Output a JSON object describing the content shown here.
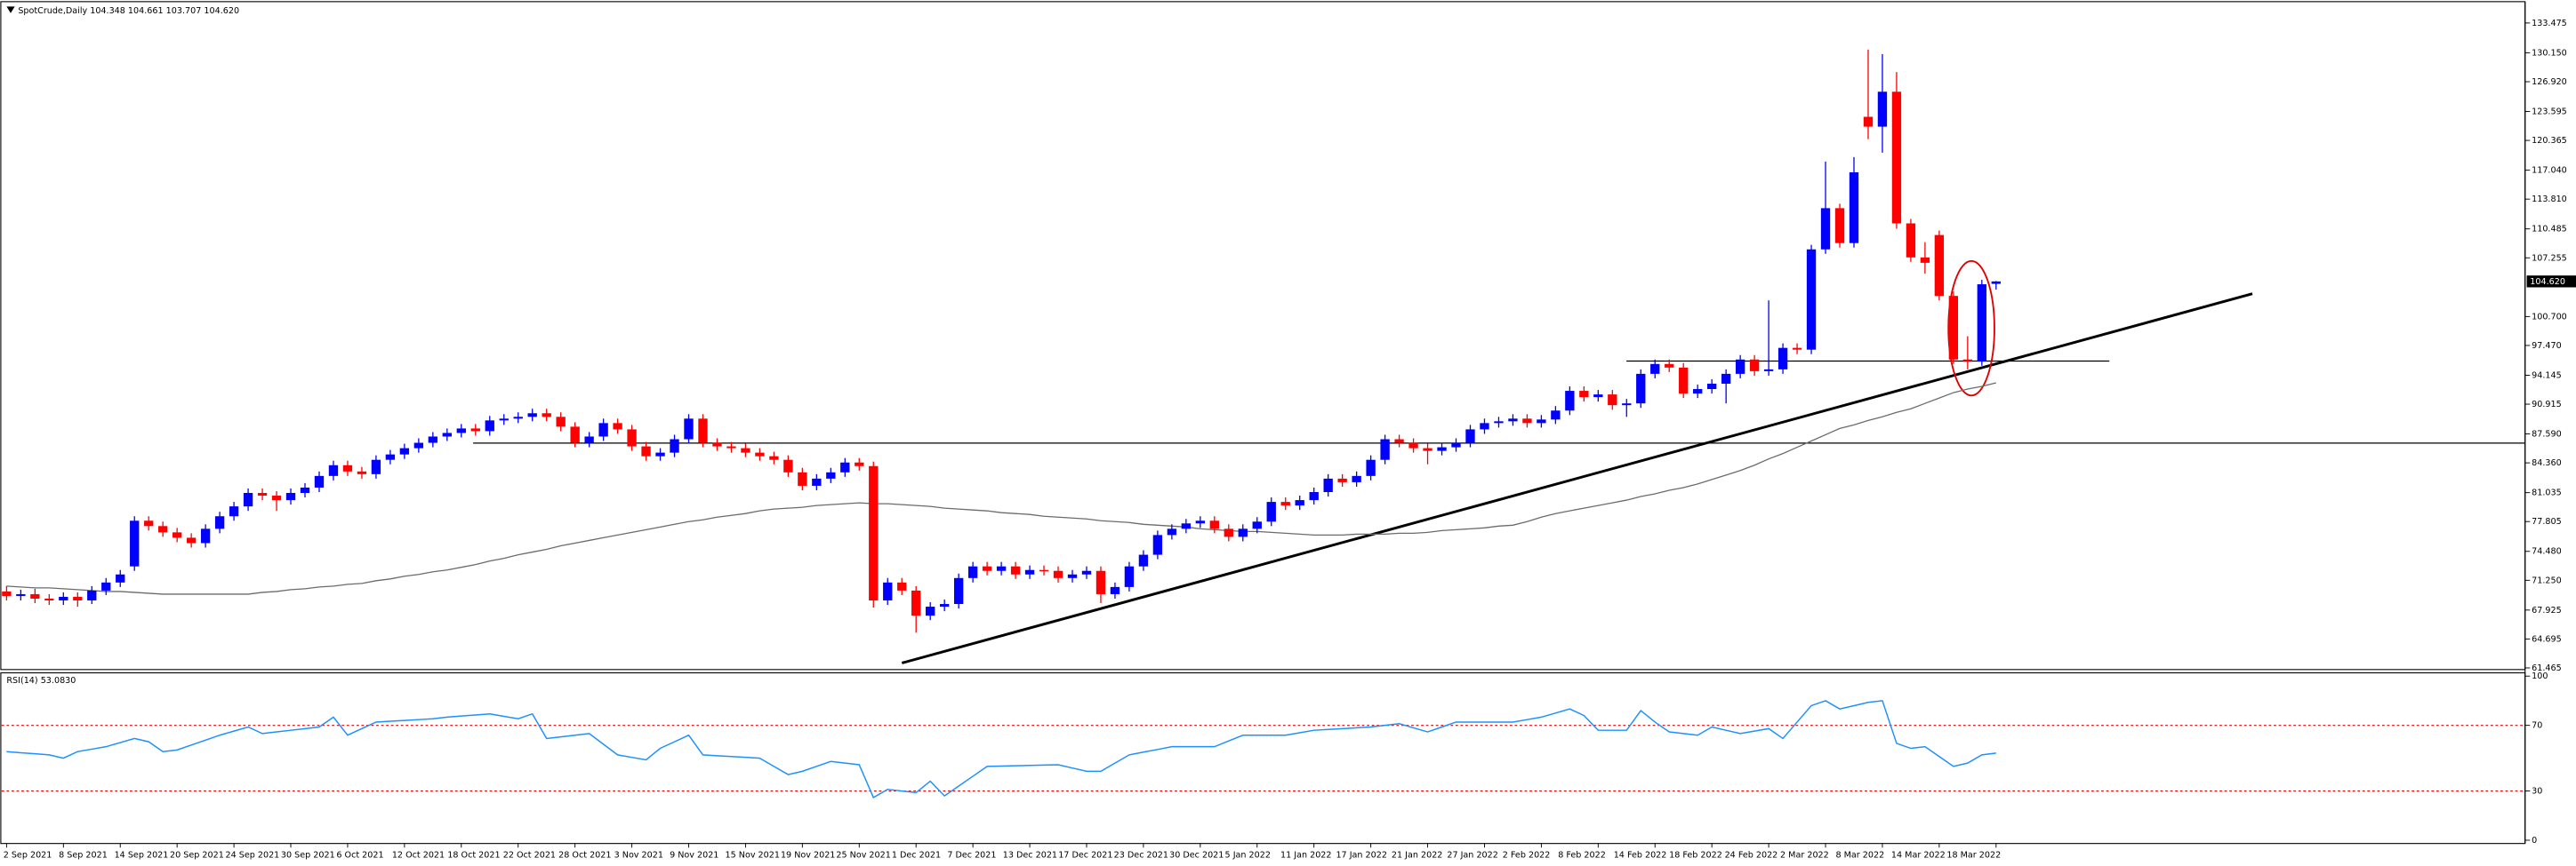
{
  "chart_data": {
    "type": "candlestick",
    "title": "SpotCrude,Daily  104.348 104.661 103.707 104.620",
    "categories": [
      "2 Sep 2021",
      null,
      null,
      null,
      "8 Sep 2021",
      null,
      null,
      null,
      "14 Sep 2021",
      null,
      null,
      null,
      "20 Sep 2021",
      null,
      null,
      null,
      "24 Sep 2021",
      null,
      null,
      null,
      "30 Sep 2021",
      null,
      null,
      null,
      "6 Oct 2021",
      null,
      null,
      null,
      "12 Oct 2021",
      null,
      null,
      null,
      "18 Oct 2021",
      null,
      null,
      null,
      "22 Oct 2021",
      null,
      null,
      null,
      "28 Oct 2021",
      null,
      null,
      null,
      "3 Nov 2021",
      null,
      null,
      null,
      "9 Nov 2021",
      null,
      null,
      null,
      "15 Nov 2021",
      null,
      null,
      null,
      "19 Nov 2021",
      null,
      null,
      null,
      "25 Nov 2021",
      null,
      null,
      null,
      "1 Dec 2021",
      null,
      null,
      null,
      "7 Dec 2021",
      null,
      null,
      null,
      "13 Dec 2021",
      null,
      null,
      null,
      "17 Dec 2021",
      null,
      null,
      null,
      "23 Dec 2021",
      null,
      null,
      null,
      "30 Dec 2021",
      null,
      null,
      null,
      "5 Jan 2022",
      null,
      null,
      null,
      "11 Jan 2022",
      null,
      null,
      null,
      "17 Jan 2022",
      null,
      null,
      null,
      "21 Jan 2022",
      null,
      null,
      null,
      "27 Jan 2022",
      null,
      null,
      null,
      "2 Feb 2022",
      null,
      null,
      null,
      "8 Feb 2022",
      null,
      null,
      null,
      "14 Feb 2022",
      null,
      null,
      null,
      "18 Feb 2022",
      null,
      null,
      null,
      "24 Feb 2022",
      null,
      null,
      null,
      "2 Mar 2022",
      null,
      null,
      null,
      "8 Mar 2022",
      null,
      null,
      null,
      "14 Mar 2022",
      null,
      null,
      null,
      "18 Mar 2022"
    ],
    "candles": [
      [
        70.0,
        70.6,
        69.0,
        69.5
      ],
      [
        69.5,
        70.2,
        69.0,
        69.7
      ],
      [
        69.7,
        70.3,
        68.7,
        69.2
      ],
      [
        69.2,
        69.7,
        68.5,
        69.0
      ],
      [
        69.0,
        69.9,
        68.5,
        69.4
      ],
      [
        69.4,
        69.9,
        68.3,
        69.0
      ],
      [
        69.0,
        70.6,
        68.6,
        70.1
      ],
      [
        70.1,
        71.5,
        69.6,
        71.0
      ],
      [
        71.0,
        72.4,
        70.5,
        71.9
      ],
      [
        72.8,
        78.4,
        72.3,
        77.9
      ],
      [
        77.9,
        78.4,
        76.8,
        77.3
      ],
      [
        77.3,
        77.8,
        76.1,
        76.6
      ],
      [
        76.6,
        77.1,
        75.5,
        76.0
      ],
      [
        76.0,
        76.5,
        74.9,
        75.4
      ],
      [
        75.4,
        77.5,
        74.9,
        77.0
      ],
      [
        77.0,
        78.9,
        76.5,
        78.4
      ],
      [
        78.4,
        80.0,
        77.9,
        79.5
      ],
      [
        79.5,
        81.5,
        79.0,
        81.0
      ],
      [
        81.0,
        81.5,
        80.2,
        80.7
      ],
      [
        80.7,
        81.2,
        79.0,
        80.2
      ],
      [
        80.2,
        81.5,
        79.7,
        81.0
      ],
      [
        81.0,
        82.1,
        80.5,
        81.6
      ],
      [
        81.6,
        83.4,
        81.1,
        82.9
      ],
      [
        82.9,
        84.6,
        82.4,
        84.1
      ],
      [
        84.1,
        84.6,
        82.9,
        83.4
      ],
      [
        83.4,
        83.9,
        82.6,
        83.1
      ],
      [
        83.1,
        85.2,
        82.6,
        84.7
      ],
      [
        84.7,
        85.8,
        84.2,
        85.3
      ],
      [
        85.3,
        86.5,
        84.8,
        86.0
      ],
      [
        86.0,
        87.1,
        85.5,
        86.6
      ],
      [
        86.6,
        87.8,
        86.1,
        87.3
      ],
      [
        87.3,
        88.2,
        86.8,
        87.7
      ],
      [
        87.7,
        88.7,
        87.2,
        88.2
      ],
      [
        88.2,
        88.7,
        87.4,
        87.9
      ],
      [
        87.9,
        89.6,
        87.4,
        89.1
      ],
      [
        89.1,
        89.8,
        88.6,
        89.3
      ],
      [
        89.3,
        90.0,
        88.8,
        89.5
      ],
      [
        89.5,
        90.4,
        89.0,
        89.9
      ],
      [
        89.9,
        90.4,
        89.0,
        89.5
      ],
      [
        89.5,
        90.0,
        87.9,
        88.4
      ],
      [
        88.4,
        88.9,
        86.1,
        86.6
      ],
      [
        86.6,
        87.8,
        86.1,
        87.3
      ],
      [
        87.3,
        89.3,
        86.8,
        88.8
      ],
      [
        88.8,
        89.3,
        87.6,
        88.1
      ],
      [
        88.1,
        88.6,
        85.7,
        86.2
      ],
      [
        86.2,
        86.7,
        84.6,
        85.1
      ],
      [
        85.1,
        86.0,
        84.6,
        85.5
      ],
      [
        85.5,
        87.5,
        85.0,
        87.0
      ],
      [
        87.0,
        89.8,
        86.5,
        89.3
      ],
      [
        89.3,
        89.8,
        86.1,
        86.6
      ],
      [
        86.6,
        87.1,
        85.7,
        86.2
      ],
      [
        86.2,
        86.7,
        85.5,
        86.0
      ],
      [
        86.0,
        86.5,
        85.0,
        85.5
      ],
      [
        85.5,
        86.0,
        84.6,
        85.1
      ],
      [
        85.1,
        85.6,
        84.2,
        84.7
      ],
      [
        84.7,
        85.2,
        82.8,
        83.3
      ],
      [
        83.3,
        83.8,
        81.3,
        81.8
      ],
      [
        81.8,
        83.1,
        81.3,
        82.6
      ],
      [
        82.6,
        83.8,
        82.1,
        83.3
      ],
      [
        83.3,
        84.9,
        82.8,
        84.4
      ],
      [
        84.4,
        84.9,
        83.5,
        84.0
      ],
      [
        84.0,
        84.5,
        68.2,
        69.0
      ],
      [
        69.0,
        71.5,
        68.5,
        71.0
      ],
      [
        71.0,
        71.5,
        69.6,
        70.1
      ],
      [
        70.1,
        70.6,
        65.4,
        67.3
      ],
      [
        67.3,
        68.8,
        66.8,
        68.3
      ],
      [
        68.3,
        69.1,
        67.8,
        68.6
      ],
      [
        68.6,
        72.0,
        68.1,
        71.5
      ],
      [
        71.5,
        73.3,
        71.0,
        72.8
      ],
      [
        72.8,
        73.3,
        71.8,
        72.3
      ],
      [
        72.3,
        73.3,
        71.8,
        72.8
      ],
      [
        72.8,
        73.3,
        71.4,
        71.9
      ],
      [
        71.9,
        72.9,
        71.4,
        72.4
      ],
      [
        72.4,
        72.9,
        71.8,
        72.3
      ],
      [
        72.3,
        72.8,
        71.0,
        71.5
      ],
      [
        71.5,
        72.4,
        71.0,
        71.9
      ],
      [
        71.9,
        72.8,
        71.4,
        72.3
      ],
      [
        72.3,
        72.8,
        68.7,
        69.7
      ],
      [
        69.7,
        71.0,
        69.2,
        70.5
      ],
      [
        70.5,
        73.3,
        70.0,
        72.8
      ],
      [
        72.8,
        74.6,
        72.3,
        74.1
      ],
      [
        74.1,
        76.8,
        73.6,
        76.3
      ],
      [
        76.3,
        77.5,
        75.8,
        77.0
      ],
      [
        77.0,
        78.1,
        76.5,
        77.6
      ],
      [
        77.6,
        78.4,
        77.1,
        77.9
      ],
      [
        77.9,
        78.4,
        76.5,
        77.0
      ],
      [
        77.0,
        77.5,
        75.6,
        76.1
      ],
      [
        76.1,
        77.5,
        75.6,
        77.0
      ],
      [
        77.0,
        78.3,
        76.5,
        77.8
      ],
      [
        77.8,
        80.5,
        77.3,
        80.0
      ],
      [
        80.0,
        80.5,
        79.1,
        79.6
      ],
      [
        79.6,
        80.7,
        79.1,
        80.2
      ],
      [
        80.2,
        81.6,
        79.7,
        81.1
      ],
      [
        81.1,
        83.1,
        80.6,
        82.6
      ],
      [
        82.6,
        83.1,
        81.7,
        82.2
      ],
      [
        82.2,
        83.4,
        81.7,
        82.9
      ],
      [
        82.9,
        85.2,
        82.4,
        84.7
      ],
      [
        84.7,
        87.5,
        84.2,
        87.0
      ],
      [
        87.0,
        87.5,
        86.1,
        86.6
      ],
      [
        86.6,
        87.1,
        85.5,
        86.0
      ],
      [
        86.0,
        86.5,
        84.2,
        85.7
      ],
      [
        85.7,
        86.6,
        85.2,
        86.1
      ],
      [
        86.1,
        87.1,
        85.6,
        86.6
      ],
      [
        86.6,
        88.6,
        86.1,
        88.1
      ],
      [
        88.1,
        89.3,
        87.6,
        88.8
      ],
      [
        88.8,
        89.5,
        88.3,
        89.0
      ],
      [
        89.0,
        89.8,
        88.5,
        89.3
      ],
      [
        89.3,
        89.8,
        88.3,
        88.8
      ],
      [
        88.8,
        89.7,
        88.3,
        89.2
      ],
      [
        89.2,
        90.7,
        88.7,
        90.2
      ],
      [
        90.2,
        92.9,
        89.7,
        92.4
      ],
      [
        92.4,
        92.9,
        91.2,
        91.7
      ],
      [
        91.7,
        92.5,
        91.2,
        92.0
      ],
      [
        92.0,
        92.5,
        90.3,
        90.8
      ],
      [
        90.8,
        91.5,
        89.5,
        91.0
      ],
      [
        91.0,
        94.8,
        90.5,
        94.3
      ],
      [
        94.3,
        95.9,
        93.8,
        95.4
      ],
      [
        95.4,
        95.9,
        94.5,
        95.0
      ],
      [
        95.0,
        95.5,
        91.6,
        92.1
      ],
      [
        92.1,
        93.1,
        91.6,
        92.6
      ],
      [
        92.6,
        93.7,
        92.1,
        93.2
      ],
      [
        93.2,
        94.8,
        91.0,
        94.3
      ],
      [
        94.3,
        96.4,
        93.8,
        95.9
      ],
      [
        95.9,
        96.4,
        94.1,
        94.6
      ],
      [
        94.6,
        102.5,
        94.1,
        94.8
      ],
      [
        94.8,
        97.7,
        94.3,
        97.2
      ],
      [
        97.2,
        97.7,
        96.5,
        97.0
      ],
      [
        97.0,
        108.7,
        96.5,
        108.2
      ],
      [
        108.2,
        118.0,
        107.7,
        112.8
      ],
      [
        112.8,
        113.3,
        108.4,
        108.9
      ],
      [
        108.9,
        118.5,
        108.4,
        116.8
      ],
      [
        123.0,
        130.5,
        120.5,
        121.9
      ],
      [
        121.9,
        130.0,
        119.0,
        125.8
      ],
      [
        125.8,
        128.0,
        110.5,
        111.1
      ],
      [
        111.1,
        111.6,
        106.8,
        107.3
      ],
      [
        107.3,
        109.0,
        105.5,
        106.7
      ],
      [
        109.8,
        110.3,
        102.5,
        103.0
      ],
      [
        103.0,
        103.5,
        95.4,
        95.9
      ],
      [
        95.9,
        98.5,
        94.8,
        95.7
      ],
      [
        95.7,
        104.8,
        95.2,
        104.3
      ],
      [
        104.348,
        104.661,
        103.707,
        104.62
      ]
    ],
    "up_color": "#0000ff",
    "down_color": "#ff0000",
    "ma": {
      "color": "#6b6b6b",
      "values": [
        70.6,
        70.5,
        70.4,
        70.4,
        70.3,
        70.2,
        70.1,
        70.0,
        70.0,
        69.9,
        69.8,
        69.7,
        69.7,
        69.7,
        69.7,
        69.7,
        69.7,
        69.7,
        69.9,
        70.0,
        70.2,
        70.3,
        70.5,
        70.6,
        70.8,
        70.9,
        71.2,
        71.4,
        71.7,
        71.9,
        72.2,
        72.4,
        72.7,
        73.0,
        73.4,
        73.7,
        74.1,
        74.4,
        74.7,
        75.1,
        75.4,
        75.7,
        76.0,
        76.3,
        76.6,
        76.9,
        77.2,
        77.5,
        77.8,
        78.0,
        78.3,
        78.5,
        78.7,
        79.0,
        79.2,
        79.3,
        79.4,
        79.6,
        79.7,
        79.8,
        79.9,
        79.8,
        79.8,
        79.7,
        79.6,
        79.5,
        79.3,
        79.2,
        79.1,
        79.0,
        78.8,
        78.7,
        78.6,
        78.4,
        78.3,
        78.2,
        78.1,
        77.9,
        77.8,
        77.7,
        77.5,
        77.4,
        77.3,
        77.2,
        77.0,
        76.9,
        76.8,
        76.7,
        76.7,
        76.6,
        76.5,
        76.4,
        76.3,
        76.3,
        76.3,
        76.4,
        76.4,
        76.4,
        76.5,
        76.5,
        76.6,
        76.8,
        76.9,
        77.0,
        77.1,
        77.3,
        77.4,
        77.8,
        78.3,
        78.7,
        79.0,
        79.3,
        79.6,
        79.9,
        80.2,
        80.6,
        80.9,
        81.3,
        81.6,
        82.0,
        82.5,
        83.0,
        83.5,
        84.1,
        84.8,
        85.4,
        86.1,
        86.8,
        87.5,
        88.2,
        88.6,
        89.1,
        89.5,
        90.0,
        90.4,
        91.0,
        91.6,
        92.2,
        92.6,
        92.9,
        93.3
      ]
    },
    "ylim": [
      61.465,
      133.475
    ],
    "yticks": [
      133.475,
      {
        "value": 130.15,
        "label": "130.150"
      },
      {
        "value": 126.92,
        "label": "126.920"
      },
      123.595,
      120.365,
      {
        "value": 117.04,
        "label": "117.040"
      },
      {
        "value": 113.81,
        "label": "113.810"
      },
      110.485,
      107.255,
      {
        "value": 100.7,
        "label": "100.700"
      },
      {
        "value": 97.47,
        "label": "97.470"
      },
      94.145,
      90.915,
      {
        "value": 87.59,
        "label": "87.590"
      },
      {
        "value": 84.36,
        "label": "84.360"
      },
      81.035,
      77.805,
      {
        "value": 74.48,
        "label": "74.480"
      },
      {
        "value": 71.25,
        "label": "71.250"
      },
      67.925,
      64.695,
      61.465
    ],
    "current_price": {
      "value": 104.62,
      "label": "104.620"
    },
    "rsi": {
      "title": "RSI(14) 53.0830",
      "color": "#1e90ff",
      "level_color": "#e00000",
      "ylim": [
        0,
        100
      ],
      "yticks": [
        100,
        70,
        30,
        0
      ],
      "values": [
        54,
        53.3,
        52.7,
        52,
        50,
        54,
        55.5,
        57,
        59.5,
        62,
        60,
        54,
        55,
        58,
        61,
        64,
        66.5,
        69,
        65,
        66,
        67,
        68,
        69,
        75,
        64,
        68,
        72,
        72.5,
        73,
        73.5,
        74,
        75,
        75.7,
        76.3,
        77,
        75.5,
        74,
        77,
        62,
        63,
        64,
        65,
        58.5,
        52,
        50.5,
        49,
        56,
        60,
        64,
        52,
        51.5,
        51,
        50.5,
        50,
        45,
        40,
        42,
        45,
        48,
        47,
        46,
        26,
        31,
        30,
        29,
        36,
        27,
        33,
        39,
        45,
        45.2,
        45.4,
        45.6,
        45.8,
        46,
        44,
        42,
        42,
        47,
        52,
        53.7,
        55.3,
        57,
        57,
        57,
        57,
        60.5,
        64,
        64,
        64,
        64,
        65.5,
        67,
        67.5,
        68,
        68.5,
        69,
        70,
        71,
        68.5,
        66,
        69,
        72,
        72,
        72,
        72,
        72,
        73.5,
        75,
        77.5,
        80,
        76,
        67,
        67,
        67,
        79,
        72,
        66,
        65,
        64,
        69,
        67,
        65,
        66.5,
        68,
        62,
        72,
        82,
        85,
        80,
        82,
        84,
        85,
        59,
        56,
        57,
        51,
        45,
        47,
        52,
        53.083
      ]
    }
  }
}
